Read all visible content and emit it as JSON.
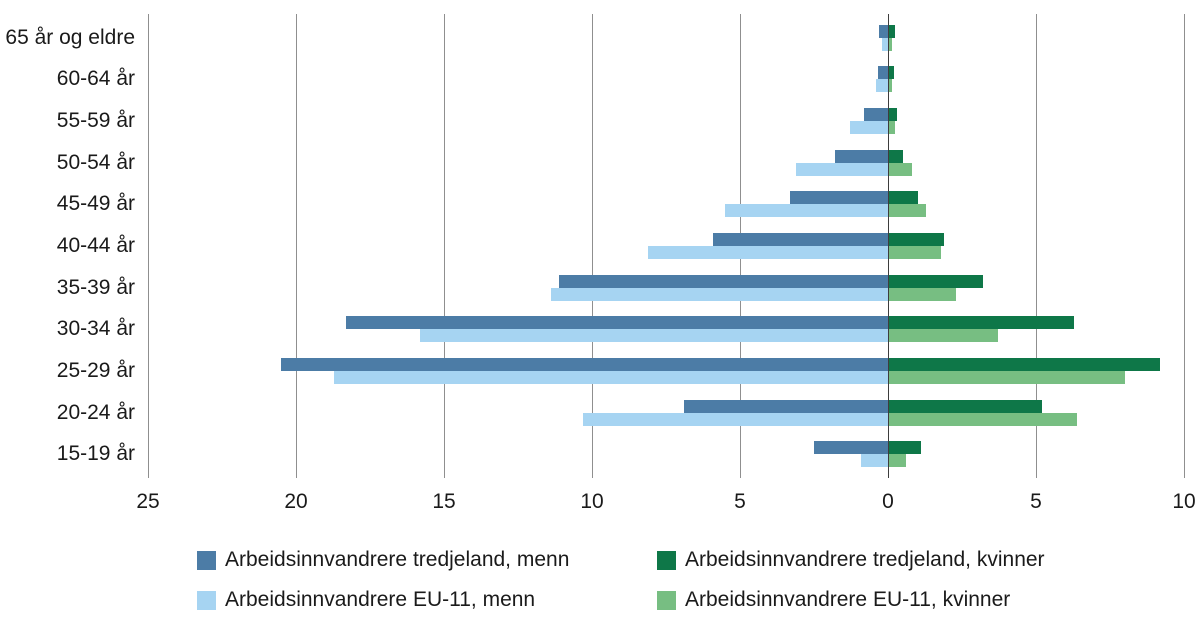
{
  "chart_data": {
    "type": "bar",
    "variant": "population-pyramid-horizontal",
    "title": "",
    "categories": [
      "65 år og eldre",
      "60-64 år",
      "55-59 år",
      "50-54 år",
      "45-49 år",
      "40-44 år",
      "35-39 år",
      "30-34 år",
      "25-29 år",
      "20-24 år",
      "15-19 år"
    ],
    "series": [
      {
        "name": "Arbeidsinnvandrere tredjeland, menn",
        "side": "left",
        "color": "#4c7ca6",
        "values": [
          0.3,
          0.35,
          0.8,
          1.8,
          3.3,
          5.9,
          11.1,
          18.3,
          20.5,
          6.9,
          2.5
        ]
      },
      {
        "name": "Arbeidsinnvandrere EU-11, menn",
        "side": "left",
        "color": "#a6d4f2",
        "values": [
          0.2,
          0.4,
          1.3,
          3.1,
          5.5,
          8.1,
          11.4,
          15.8,
          18.7,
          10.3,
          0.9
        ]
      },
      {
        "name": "Arbeidsinnvandrere tredjeland, kvinner",
        "side": "right",
        "color": "#0e7748",
        "values": [
          0.25,
          0.2,
          0.3,
          0.5,
          1.0,
          1.9,
          3.2,
          6.3,
          9.2,
          5.2,
          1.1
        ]
      },
      {
        "name": "Arbeidsinnvandrere EU-11, kvinner",
        "side": "right",
        "color": "#77be82",
        "values": [
          0.15,
          0.15,
          0.25,
          0.8,
          1.3,
          1.8,
          2.3,
          3.7,
          8.0,
          6.4,
          0.6
        ]
      }
    ],
    "axis": {
      "tick_values": [
        25,
        20,
        15,
        10,
        5,
        0,
        -5,
        -10
      ],
      "tick_labels": [
        "25",
        "20",
        "15",
        "10",
        "5",
        "0",
        "5",
        "10"
      ],
      "left_max": 25,
      "right_max": 10,
      "grid": true,
      "gridline_color": "#8f8f8f",
      "zero_line_color": "#3d3d3d"
    }
  },
  "legend": {
    "items": [
      {
        "label": "Arbeidsinnvandrere tredjeland, menn",
        "color": "#4c7ca6"
      },
      {
        "label": "Arbeidsinnvandrere tredjeland, kvinner",
        "color": "#0e7748"
      },
      {
        "label": "Arbeidsinnvandrere EU-11, menn",
        "color": "#a6d4f2"
      },
      {
        "label": "Arbeidsinnvandrere EU-11, kvinner",
        "color": "#77be82"
      }
    ]
  }
}
